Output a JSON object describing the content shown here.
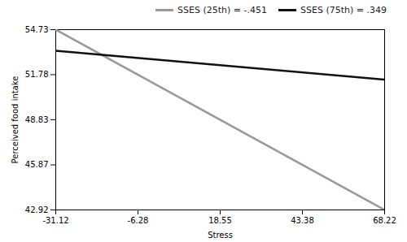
{
  "chart_data": {
    "type": "line",
    "xlabel": "Stress",
    "ylabel": "Perceived food intake",
    "x": [
      -31.12,
      68.22
    ],
    "series": [
      {
        "name": "SSES (25th) = -.451",
        "color": "#999999",
        "values": [
          54.73,
          42.92
        ]
      },
      {
        "name": "SSES (75th) = .349",
        "color": "#111111",
        "values": [
          53.35,
          51.45
        ]
      }
    ],
    "xlim": [
      -31.12,
      68.22
    ],
    "xticks": [
      -31.12,
      -6.28,
      18.55,
      43.38,
      68.22
    ],
    "ylim": [
      42.92,
      54.73
    ],
    "yticks": [
      42.92,
      45.87,
      48.83,
      51.78,
      54.73
    ],
    "grid": false,
    "legend": "upper right"
  }
}
